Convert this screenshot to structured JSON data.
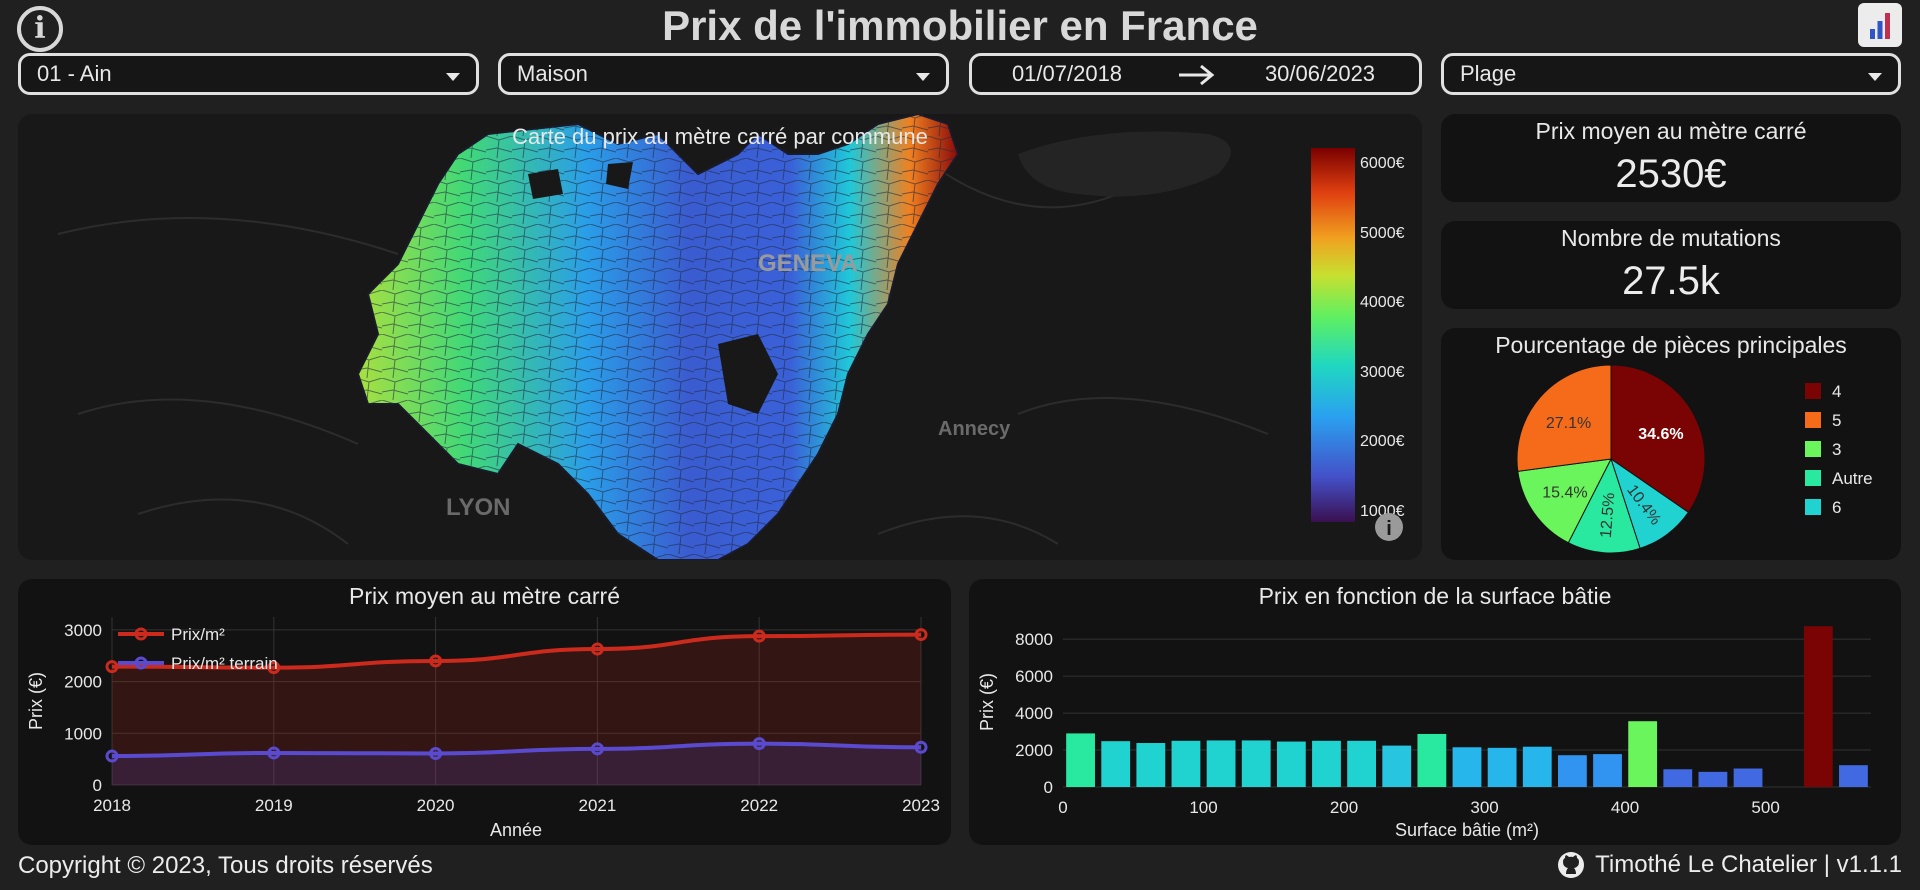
{
  "header": {
    "title": "Prix de l'immobilier en France",
    "info_icon": "info-icon",
    "chart_icon": "bar-chart-icon"
  },
  "filters": {
    "department": "01 - Ain",
    "property_type": "Maison",
    "date_start": "01/07/2018",
    "date_end": "30/06/2023",
    "map_style": "Plage"
  },
  "map": {
    "title": "Carte du prix au mètre carré par commune",
    "places": [
      "GENEVA",
      "Annecy",
      "LYON"
    ],
    "colorbar_ticks": [
      "6000€",
      "5000€",
      "4000€",
      "3000€",
      "2000€",
      "1000€"
    ],
    "info_icon": "map-info-icon",
    "colorscale": [
      "#3a1050",
      "#4450c8",
      "#2aa0f0",
      "#20d8c0",
      "#60f060",
      "#c8e030",
      "#f0a020",
      "#e04010",
      "#7a0000"
    ]
  },
  "kpi": {
    "avg_price_title": "Prix moyen au mètre carré",
    "avg_price_value": "2530€",
    "mutations_title": "Nombre de mutations",
    "mutations_value": "27.5k"
  },
  "rooms_pie": {
    "title": "Pourcentage de pièces principales",
    "chart_data": {
      "type": "pie",
      "labels": [
        "4",
        "6",
        "Autre",
        "3",
        "5"
      ],
      "values": [
        34.6,
        10.4,
        12.5,
        15.4,
        27.1
      ],
      "value_labels": [
        "34.6%",
        "10.4%",
        "12.5%",
        "15.4%",
        "27.1%"
      ],
      "colors": [
        "#7a0403",
        "#21d3d0",
        "#29e9a0",
        "#6bf55c",
        "#f56b1a"
      ],
      "legend_order": [
        "4",
        "5",
        "3",
        "Autre",
        "6"
      ],
      "legend_placement": "right"
    }
  },
  "price_line": {
    "title": "Prix moyen au mètre carré",
    "chart_data": {
      "type": "line",
      "x": [
        2018,
        2019,
        2020,
        2021,
        2022,
        2023
      ],
      "series": [
        {
          "name": "Prix/m²",
          "values": [
            2290,
            2270,
            2400,
            2630,
            2880,
            2910
          ],
          "color": "#cc2a1c"
        },
        {
          "name": "Prix/m² terrain",
          "values": [
            560,
            620,
            610,
            700,
            800,
            730
          ],
          "color": "#5a4ad0"
        }
      ],
      "xlabel": "Année",
      "ylabel": "Prix (€)",
      "ylim": [
        0,
        3250
      ],
      "yticks": [
        0,
        1000,
        2000,
        3000
      ],
      "xticks": [
        "2018",
        "2019",
        "2020",
        "2021",
        "2022",
        "2023"
      ],
      "grid": true,
      "legend_placement": "top-left"
    }
  },
  "surface_bar": {
    "title": "Prix en fonction de la surface bâtie",
    "chart_data": {
      "type": "bar",
      "x": [
        12.5,
        37.5,
        62.5,
        87.5,
        112.5,
        137.5,
        162.5,
        187.5,
        212.5,
        237.5,
        262.5,
        287.5,
        312.5,
        337.5,
        362.5,
        387.5,
        412.5,
        437.5,
        462.5,
        487.5,
        512.5,
        537.5,
        562.5
      ],
      "values": [
        2900,
        2480,
        2380,
        2500,
        2520,
        2520,
        2460,
        2500,
        2500,
        2240,
        2870,
        2150,
        2120,
        2180,
        1720,
        1780,
        3560,
        960,
        820,
        1000,
        0,
        8700,
        1180
      ],
      "colors": [
        "#29e9a0",
        "#21d3d0",
        "#21d3d0",
        "#21d3d0",
        "#21d3d0",
        "#21d3d0",
        "#21d3d0",
        "#21d3d0",
        "#21d3d0",
        "#27c5e0",
        "#29e9a0",
        "#27b6ec",
        "#27b6ec",
        "#27b6ec",
        "#3094f0",
        "#3094f0",
        "#6bf55c",
        "#4169e1",
        "#4169e1",
        "#4169e1",
        "#4169e1",
        "#7a0403",
        "#4169e1"
      ],
      "xlabel": "Surface bâtie (m²)",
      "ylabel": "Prix (€)",
      "xlim": [
        0,
        575
      ],
      "ylim": [
        0,
        9200
      ],
      "yticks": [
        0,
        2000,
        4000,
        6000,
        8000
      ],
      "xticks": [
        0,
        100,
        200,
        300,
        400,
        500
      ],
      "grid": true
    }
  },
  "footer": {
    "copyright": "Copyright © 2023, Tous droits réservés",
    "credits": "Timothé Le Chatelier | v1.1.1",
    "github_icon": "github-icon"
  }
}
